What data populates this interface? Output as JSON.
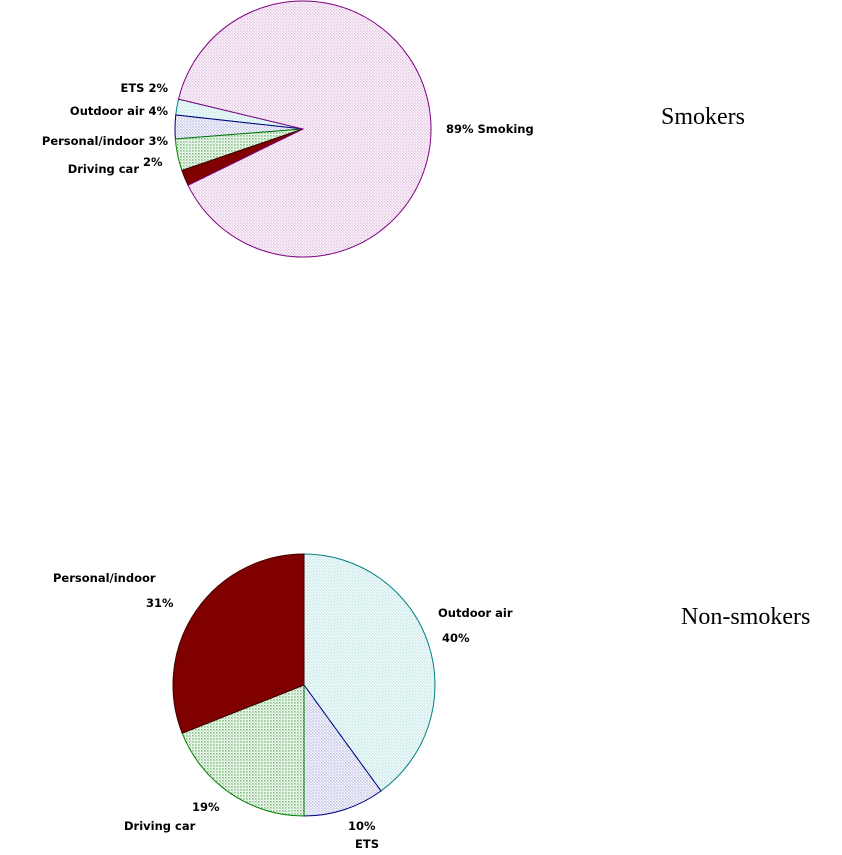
{
  "chart_data": [
    {
      "type": "pie",
      "title": "Smokers",
      "slices": [
        {
          "label": "Smoking",
          "value": 89,
          "value_text": "89%",
          "label_text": "89% Smoking",
          "color": "#e6c8e6",
          "edge": "#800080",
          "pattern": "dots"
        },
        {
          "label": "Driving car",
          "value": 2,
          "value_text": "2%",
          "label_text": "Driving car",
          "color": "#c6ecec",
          "edge": "#008080",
          "pattern": "dots"
        },
        {
          "label": "Personal/indoor",
          "value": 3,
          "value_text": "3%",
          "label_text": "Personal/indoor 3%",
          "color": "#c8c8ec",
          "edge": "#000080",
          "pattern": "dots"
        },
        {
          "label": "Outdoor air",
          "value": 4,
          "value_text": "4%",
          "label_text": "Outdoor air 4%",
          "color": "#80c080",
          "edge": "#008000",
          "pattern": "dots"
        },
        {
          "label": "ETS",
          "value": 2,
          "value_text": "2%",
          "label_text": "ETS 2%",
          "color": "#800000",
          "edge": "#400000",
          "pattern": "solid"
        }
      ]
    },
    {
      "type": "pie",
      "title": "Non-smokers",
      "slices": [
        {
          "label": "Outdoor air",
          "value": 40,
          "value_text": "40%",
          "label_text": "Outdoor air",
          "color": "#c6ecec",
          "edge": "#008080",
          "pattern": "dots"
        },
        {
          "label": "ETS",
          "value": 10,
          "value_text": "10%",
          "label_text": "ETS",
          "color": "#c8c8ec",
          "edge": "#000080",
          "pattern": "dots"
        },
        {
          "label": "Driving car",
          "value": 19,
          "value_text": "19%",
          "label_text": "Driving car",
          "color": "#80c080",
          "edge": "#008000",
          "pattern": "dots"
        },
        {
          "label": "Personal/indoor",
          "value": 31,
          "value_text": "31%",
          "label_text": "Personal/indoor",
          "color": "#800000",
          "edge": "#400000",
          "pattern": "solid"
        }
      ]
    }
  ]
}
